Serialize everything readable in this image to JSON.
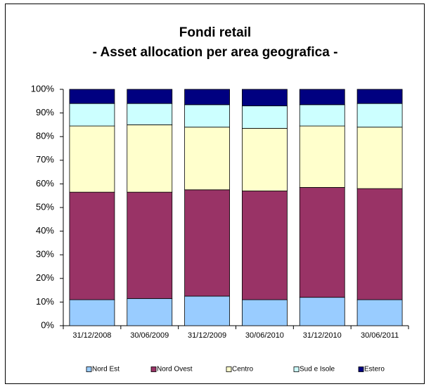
{
  "chart_data": {
    "type": "stacked_bar",
    "title": "Fondi retail",
    "subtitle": "- Asset allocation per area geografica -",
    "categories": [
      "31/12/2008",
      "30/06/2009",
      "31/12/2009",
      "30/06/2010",
      "31/12/2010",
      "30/06/2011"
    ],
    "series": [
      {
        "name": "Nord Est",
        "color": "#99ccff",
        "values": [
          11,
          11.5,
          12.5,
          11,
          12,
          11
        ]
      },
      {
        "name": "Nord Ovest",
        "color": "#993366",
        "values": [
          45.5,
          45,
          45,
          46,
          46.5,
          47
        ]
      },
      {
        "name": "Centro",
        "color": "#ffffcc",
        "values": [
          28,
          28.5,
          26.5,
          26.5,
          26,
          26
        ]
      },
      {
        "name": "Sud e Isole",
        "color": "#ccffff",
        "values": [
          9.5,
          9,
          9.5,
          9.5,
          9,
          10
        ]
      },
      {
        "name": "Estero",
        "color": "#000080",
        "values": [
          6,
          6,
          6.5,
          7,
          6.5,
          6
        ]
      }
    ],
    "ylim": [
      0,
      100
    ],
    "yticks": [
      {
        "value": 0,
        "label": "0%"
      },
      {
        "value": 10,
        "label": "10%"
      },
      {
        "value": 20,
        "label": "20%"
      },
      {
        "value": 30,
        "label": "30%"
      },
      {
        "value": 40,
        "label": "40%"
      },
      {
        "value": 50,
        "label": "50%"
      },
      {
        "value": 60,
        "label": "60%"
      },
      {
        "value": 70,
        "label": "70%"
      },
      {
        "value": 80,
        "label": "80%"
      },
      {
        "value": 90,
        "label": "90%"
      },
      {
        "value": 100,
        "label": "100%"
      }
    ],
    "legend": "bottom"
  }
}
